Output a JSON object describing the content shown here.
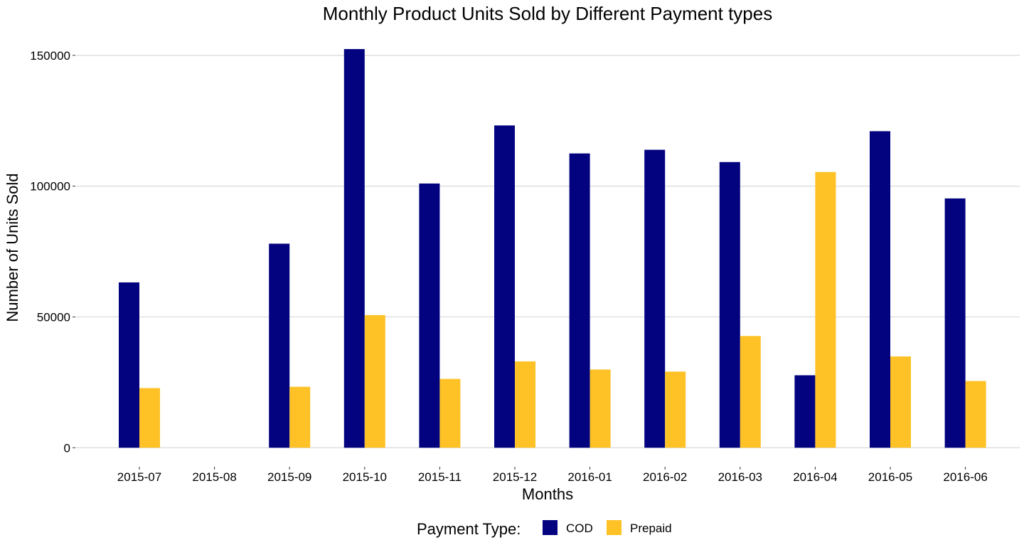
{
  "chart_data": {
    "type": "bar",
    "title": "Monthly Product Units Sold by Different Payment types",
    "xlabel": "Months",
    "ylabel": "Number of Units Sold",
    "categories": [
      "2015-07",
      "2015-08",
      "2015-09",
      "2015-10",
      "2015-11",
      "2015-12",
      "2016-01",
      "2016-02",
      "2016-03",
      "2016-04",
      "2016-05",
      "2016-06"
    ],
    "series": [
      {
        "name": "COD",
        "color": "#03037f",
        "values": [
          63200,
          0,
          78000,
          152400,
          101000,
          123200,
          112500,
          113900,
          109200,
          27700,
          121000,
          95300
        ]
      },
      {
        "name": "Prepaid",
        "color": "#fec226",
        "values": [
          22800,
          0,
          23300,
          50700,
          26300,
          33000,
          29900,
          29100,
          42700,
          105400,
          34900,
          25500
        ]
      }
    ],
    "ylim": [
      -7000,
      160000
    ],
    "yticks": [
      0,
      50000,
      100000,
      150000
    ],
    "ytick_labels": [
      "0",
      "50000",
      "100000",
      "150000"
    ],
    "grid": true,
    "legend": {
      "title": "Payment Type:",
      "placement": "bottom"
    }
  }
}
